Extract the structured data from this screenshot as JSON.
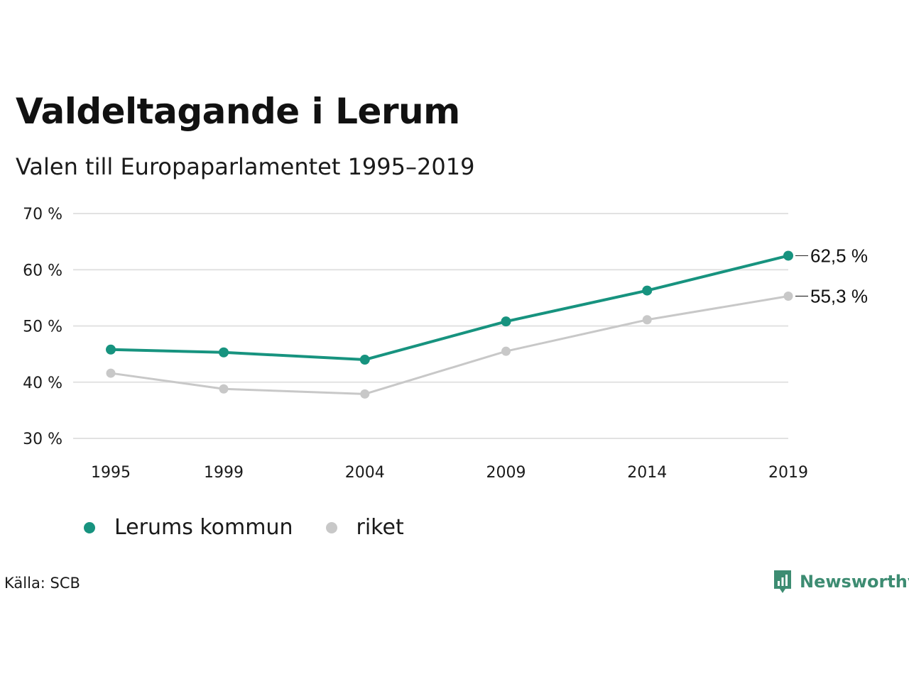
{
  "title": "Valdeltagande i Lerum",
  "subtitle": "Valen till Europaparlamentet 1995–2019",
  "source": "Källa: SCB",
  "brand": "Newsworthy",
  "colors": {
    "primary": "#17937f",
    "secondary": "#c8c8c8",
    "grid": "#e2e2e2",
    "brand": "#3d8c72"
  },
  "legend": [
    {
      "label": "Lerums kommun",
      "color": "#17937f"
    },
    {
      "label": "riket",
      "color": "#c8c8c8"
    }
  ],
  "chart_data": {
    "type": "line",
    "x": [
      1995,
      1999,
      2004,
      2009,
      2014,
      2019
    ],
    "x_tick_labels": [
      "1995",
      "1999",
      "2004",
      "2009",
      "2014",
      "2019"
    ],
    "ylim": [
      30,
      70
    ],
    "y_ticks": [
      30,
      40,
      50,
      60,
      70
    ],
    "y_tick_labels": [
      "30 %",
      "40 %",
      "50 %",
      "60 %",
      "70 %"
    ],
    "grid": true,
    "series": [
      {
        "name": "Lerums kommun",
        "values": [
          45.8,
          45.3,
          44.0,
          50.8,
          56.3,
          62.5
        ],
        "end_label": "62,5 %"
      },
      {
        "name": "riket",
        "values": [
          41.6,
          38.8,
          37.9,
          45.5,
          51.1,
          55.3
        ],
        "end_label": "55,3 %"
      }
    ]
  }
}
